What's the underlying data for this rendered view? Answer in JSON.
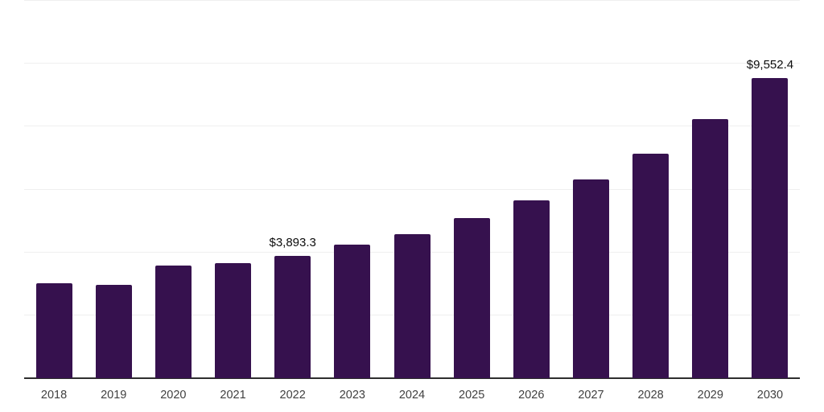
{
  "chart_data": {
    "type": "bar",
    "title": "",
    "xlabel": "",
    "ylabel": "",
    "categories": [
      "2018",
      "2019",
      "2020",
      "2021",
      "2022",
      "2023",
      "2024",
      "2025",
      "2026",
      "2027",
      "2028",
      "2029",
      "2030"
    ],
    "values": [
      3025,
      2975,
      3570,
      3655,
      3893.3,
      4255,
      4580,
      5085,
      5645,
      6330,
      7140,
      8250,
      9552.4
    ],
    "data_labels": {
      "2022": "$3,893.3",
      "2030": "$9,552.4"
    },
    "ylim": [
      0,
      12000
    ],
    "gridline_step": 2000,
    "grid": "horizontal-only",
    "legend": "none",
    "colors": {
      "bar": "#36114e",
      "axis_line": "#2e2e2e",
      "gridline": "#efefef",
      "value_label": "#0d0d0d",
      "tick_label": "#404040",
      "background": "#ffffff"
    }
  }
}
